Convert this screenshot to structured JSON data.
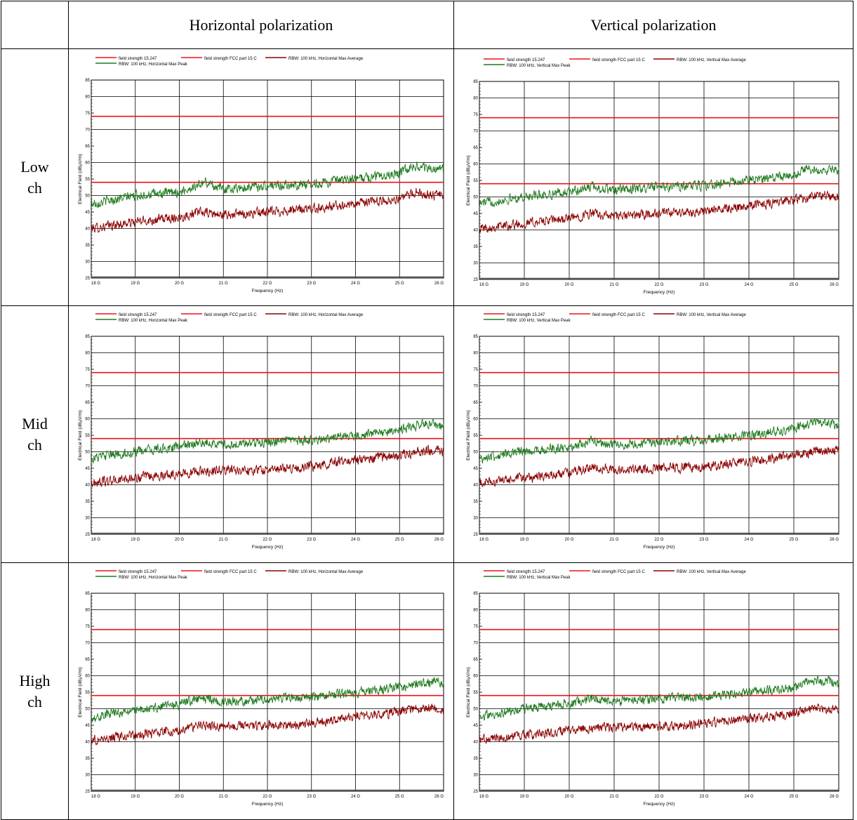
{
  "table": {
    "columns": [
      "",
      "Horizontal polarization",
      "Vertical polarization"
    ],
    "rows": [
      {
        "label_line1": "Low",
        "label_line2": "ch"
      },
      {
        "label_line1": "Mid",
        "label_line2": "ch"
      },
      {
        "label_line1": "High",
        "label_line2": "ch"
      }
    ]
  },
  "colors": {
    "limit": "#e8141b",
    "average": "#8b0000",
    "peak": "#1f7a1f",
    "grid": "#000000"
  },
  "chart_data": [
    {
      "id": "low-h",
      "type": "line",
      "xlabel": "Frequency (Hz)",
      "ylabel": "Electrical Field (dBµV/m)",
      "xlim": [
        18,
        26
      ],
      "ylim": [
        25,
        85
      ],
      "xticks": [
        "18 G",
        "19 G",
        "20 G",
        "21 G",
        "22 G",
        "23 G",
        "24 G",
        "25 G",
        "26 G"
      ],
      "yticks": [
        "25",
        "30",
        "35",
        "40",
        "45",
        "50",
        "55",
        "60",
        "65",
        "70",
        "75",
        "80",
        "85"
      ],
      "legend": [
        "field strength 15.247",
        "field strength FCC part 15 C",
        "RBW: 100 kHz, Horizontal Max Average",
        "RBW: 100 kHz, Horizontal Max Peak"
      ],
      "limits": [
        74,
        54
      ],
      "series": [
        {
          "name": "RBW: 100 kHz, Horizontal Max Average",
          "kind": "average",
          "x": [
            18,
            19,
            20,
            20.5,
            21,
            22,
            23,
            24,
            25,
            25.4,
            25.8,
            26
          ],
          "values": [
            40,
            42,
            43.5,
            45,
            44,
            45,
            46,
            47.5,
            49,
            51,
            50,
            50
          ]
        },
        {
          "name": "RBW: 100 kHz, Horizontal Max Peak",
          "kind": "peak",
          "x": [
            18,
            19,
            20,
            20.6,
            21,
            22,
            23,
            24,
            25,
            25.3,
            25.8,
            26
          ],
          "values": [
            47.5,
            50,
            51,
            54,
            52,
            53,
            53.5,
            55,
            57,
            59,
            58,
            58
          ]
        }
      ]
    },
    {
      "id": "low-v",
      "type": "line",
      "xlabel": "Frequency (Hz)",
      "ylabel": "Electrical Field (dBµV/m)",
      "xlim": [
        18,
        26
      ],
      "ylim": [
        25,
        85
      ],
      "xticks": [
        "18 G",
        "19 G",
        "20 G",
        "21 G",
        "22 G",
        "23 G",
        "24 G",
        "25 G",
        "26 G"
      ],
      "yticks": [
        "25",
        "30",
        "35",
        "40",
        "45",
        "50",
        "55",
        "60",
        "65",
        "70",
        "75",
        "80",
        "85"
      ],
      "legend": [
        "field strength 15.247",
        "field strength FCC part 15 C",
        "RBW: 100 kHz, Vertical Max Average",
        "RBW: 100 kHz, Vertical Max Peak"
      ],
      "limits": [
        74,
        54
      ],
      "series": [
        {
          "name": "RBW: 100 kHz, Vertical Max Average",
          "kind": "average",
          "x": [
            18,
            19,
            20,
            20.5,
            21,
            22,
            23,
            24,
            25,
            25.6,
            26
          ],
          "values": [
            40.5,
            42,
            43.5,
            45,
            44,
            45,
            45.5,
            47.5,
            49,
            50.5,
            50
          ]
        },
        {
          "name": "RBW: 100 kHz, Vertical Max Peak",
          "kind": "peak",
          "x": [
            18,
            19,
            20,
            20.5,
            21,
            22,
            23,
            24,
            25,
            25.3,
            26
          ],
          "values": [
            48,
            50,
            51.5,
            53,
            52,
            53,
            53.5,
            55,
            56.5,
            58.5,
            58
          ]
        }
      ]
    },
    {
      "id": "mid-h",
      "type": "line",
      "xlabel": "Frequency (Hz)",
      "ylabel": "Electrical Field (dBµV/m)",
      "xlim": [
        18,
        26
      ],
      "ylim": [
        25,
        85
      ],
      "xticks": [
        "18 G",
        "19 G",
        "20 G",
        "21 G",
        "22 G",
        "23 G",
        "24 G",
        "25 G",
        "26 G"
      ],
      "yticks": [
        "25",
        "30",
        "35",
        "40",
        "45",
        "50",
        "55",
        "60",
        "65",
        "70",
        "75",
        "80",
        "85"
      ],
      "legend": [
        "field strength 15.247",
        "field strength FCC part 15 C",
        "RBW: 100 kHz, Horizontal Max Average",
        "RBW: 100 kHz, Horizontal Max Peak"
      ],
      "limits": [
        74,
        54
      ],
      "series": [
        {
          "name": "RBW: 100 kHz, Horizontal Max Average",
          "kind": "average",
          "x": [
            18,
            19,
            20,
            21,
            22,
            23,
            23.5,
            24,
            25,
            25.7,
            26
          ],
          "values": [
            40.5,
            42,
            43.5,
            44.5,
            44.5,
            45.5,
            47,
            47.5,
            49,
            50.5,
            50
          ]
        },
        {
          "name": "RBW: 100 kHz, Horizontal Max Peak",
          "kind": "peak",
          "x": [
            18,
            19,
            20,
            20.6,
            21,
            22,
            23,
            24,
            25,
            25.3,
            25.8,
            26
          ],
          "values": [
            48,
            50,
            51.5,
            53,
            52,
            53,
            53.5,
            55,
            56.5,
            58,
            58.5,
            57.5
          ]
        }
      ]
    },
    {
      "id": "mid-v",
      "type": "line",
      "xlabel": "Frequency (Hz)",
      "ylabel": "Electrical Field (dBµV/m)",
      "xlim": [
        18,
        26
      ],
      "ylim": [
        25,
        85
      ],
      "xticks": [
        "18 G",
        "19 G",
        "20 G",
        "21 G",
        "22 G",
        "23 G",
        "24 G",
        "25 G",
        "26 G"
      ],
      "yticks": [
        "25",
        "30",
        "35",
        "40",
        "45",
        "50",
        "55",
        "60",
        "65",
        "70",
        "75",
        "80",
        "85"
      ],
      "legend": [
        "field strength 15.247",
        "field strength FCC part 15 C",
        "RBW: 100 kHz, Vertical Max Average",
        "RBW: 100 kHz, Vertical Max Peak"
      ],
      "limits": [
        74,
        54
      ],
      "series": [
        {
          "name": "RBW: 100 kHz, Vertical Max Average",
          "kind": "average",
          "x": [
            18,
            19,
            20,
            20.5,
            21,
            22,
            23,
            24,
            25,
            25.7,
            26
          ],
          "values": [
            40.5,
            42,
            43.5,
            45.5,
            44.5,
            45,
            45.5,
            47,
            49,
            50.5,
            50
          ]
        },
        {
          "name": "RBW: 100 kHz, Vertical Max Peak",
          "kind": "peak",
          "x": [
            18,
            19,
            20,
            20.5,
            21,
            22,
            23,
            24,
            25,
            25.4,
            26
          ],
          "values": [
            48,
            50,
            51.5,
            53.5,
            52,
            53,
            53.5,
            55,
            57,
            59,
            58
          ]
        }
      ]
    },
    {
      "id": "high-h",
      "type": "line",
      "xlabel": "Frequency (Hz)",
      "ylabel": "Electrical Field (dBµV/m)",
      "xlim": [
        18,
        26
      ],
      "ylim": [
        25,
        85
      ],
      "xticks": [
        "18 G",
        "19 G",
        "20 G",
        "21 G",
        "22 G",
        "23 G",
        "24 G",
        "25 G",
        "26 G"
      ],
      "yticks": [
        "25",
        "30",
        "35",
        "40",
        "45",
        "50",
        "55",
        "60",
        "65",
        "70",
        "75",
        "80",
        "85"
      ],
      "legend": [
        "field strength 15.247",
        "field strength FCC part 15 C",
        "RBW: 100 kHz, Horizontal Max Average",
        "RBW: 100 kHz, Horizontal Max Peak"
      ],
      "limits": [
        74,
        54
      ],
      "series": [
        {
          "name": "RBW: 100 kHz, Horizontal Max Average",
          "kind": "average",
          "x": [
            18,
            19,
            20,
            20.5,
            21,
            22,
            23,
            24,
            25,
            25.6,
            26
          ],
          "values": [
            40.5,
            42,
            43.5,
            45,
            44.5,
            45,
            45.5,
            47.5,
            49,
            50.5,
            49.5
          ]
        },
        {
          "name": "RBW: 100 kHz, Horizontal Max Peak",
          "kind": "peak",
          "x": [
            18,
            19,
            20,
            20.5,
            21,
            22,
            23,
            24,
            25,
            25.9,
            26
          ],
          "values": [
            47.5,
            49.5,
            51.5,
            53,
            52,
            53,
            53.5,
            55,
            56.5,
            58.5,
            57
          ]
        }
      ]
    },
    {
      "id": "high-v",
      "type": "line",
      "xlabel": "Frequency (Hz)",
      "ylabel": "Electrical Field (dBµV/m)",
      "xlim": [
        18,
        26
      ],
      "ylim": [
        25,
        85
      ],
      "xticks": [
        "18 G",
        "19 G",
        "20 G",
        "21 G",
        "22 G",
        "23 G",
        "24 G",
        "25 G",
        "26 G"
      ],
      "yticks": [
        "25",
        "30",
        "35",
        "40",
        "45",
        "50",
        "55",
        "60",
        "65",
        "70",
        "75",
        "80",
        "85"
      ],
      "legend": [
        "field strength 15.247",
        "field strength FCC part 15 C",
        "RBW: 100 kHz, Vertical Max Average",
        "RBW: 100 kHz, Vertical Max Peak"
      ],
      "limits": [
        74,
        54
      ],
      "series": [
        {
          "name": "RBW: 100 kHz, Vertical Max Average",
          "kind": "average",
          "x": [
            18,
            19,
            20,
            21,
            22,
            23,
            24,
            25,
            25.5,
            26
          ],
          "values": [
            40.5,
            42,
            43.5,
            44.5,
            44.5,
            45.5,
            47,
            48.5,
            50.5,
            49.5
          ]
        },
        {
          "name": "RBW: 100 kHz, Vertical Max Peak",
          "kind": "peak",
          "x": [
            18,
            19,
            20,
            20.5,
            21,
            22,
            23,
            24,
            25,
            25.3,
            25.9,
            26
          ],
          "values": [
            47.5,
            50,
            51.5,
            53,
            52,
            53,
            53.5,
            55,
            56.5,
            58.5,
            58,
            57
          ]
        }
      ]
    }
  ]
}
